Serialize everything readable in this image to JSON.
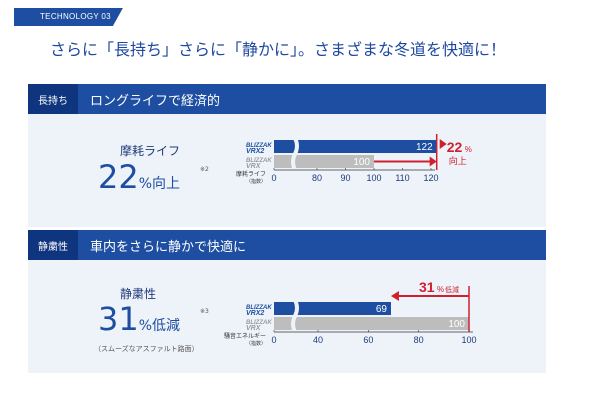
{
  "tag": "TECHNOLOGY 03",
  "headline": "さらに「長持ち」さらに「静かに」。さまざまな冬道を快適に！",
  "colors": {
    "accent": "#1d4ea1",
    "dark": "#0f357e",
    "gray_bar": "#bdbdbd",
    "highlight": "#d0202e"
  },
  "sections": [
    {
      "label": "長持ち",
      "title": "ロングライフで経済的",
      "metric_label": "摩耗ライフ",
      "metric_value": "22",
      "metric_unit": "%向上",
      "footnote": "※2",
      "metric_note": "",
      "callout_value": "22",
      "callout_unit": "%",
      "callout_text": "向上",
      "bar_top_brand": "BLIZZAK VRX2",
      "bar_bottom_brand": "BLIZZAK VRX",
      "axis_title": "摩耗ライフ（指数）",
      "chart_data": {
        "type": "bar",
        "categories": [
          "BLIZZAK VRX2",
          "BLIZZAK VRX"
        ],
        "values": [
          122,
          100
        ],
        "xticks": [
          0,
          80,
          90,
          100,
          110,
          120
        ],
        "axis_break": true
      }
    },
    {
      "label": "静粛性",
      "title": "車内をさらに静かで快適に",
      "metric_label": "静粛性",
      "metric_value": "31",
      "metric_unit": "%低減",
      "footnote": "※3",
      "metric_note": "（スムーズなアスファルト路面）",
      "callout_value": "31",
      "callout_unit": "%",
      "callout_text": "低減",
      "bar_top_brand": "BLIZZAK VRX2",
      "bar_bottom_brand": "BLIZZAK VRX",
      "axis_title": "騒音エネルギー（指数）",
      "chart_data": {
        "type": "bar",
        "categories": [
          "BLIZZAK VRX2",
          "BLIZZAK VRX"
        ],
        "values": [
          69,
          100
        ],
        "xticks": [
          0,
          40,
          60,
          80,
          100
        ],
        "axis_break": true
      }
    }
  ]
}
